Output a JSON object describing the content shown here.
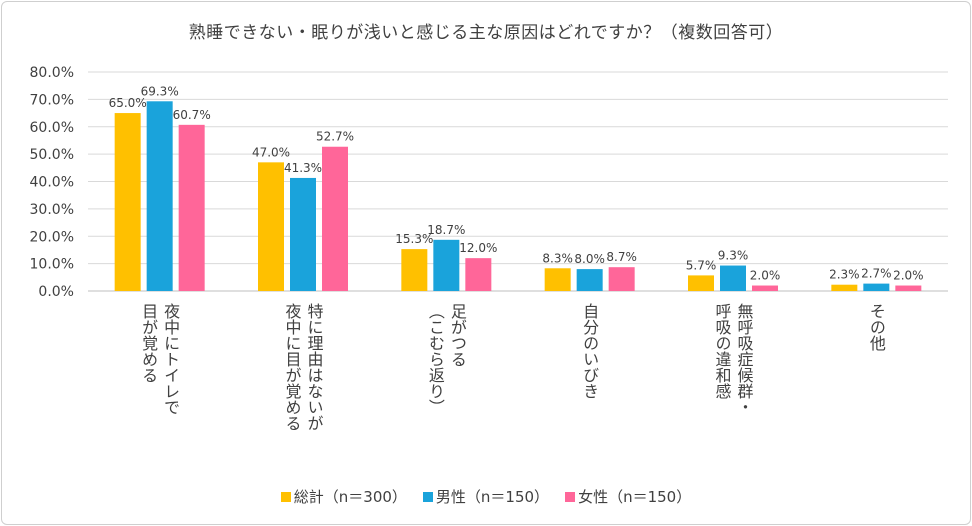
{
  "chart_data": {
    "type": "bar",
    "title": "熟睡できない・眠りが浅いと感じる主な原因はどれですか？（複数回答可）",
    "categories": [
      [
        "夜中にトイレで",
        "目が覚める"
      ],
      [
        "特に理由はないが",
        "夜中に目が覚める"
      ],
      [
        "足がつる",
        "（こむら返り）"
      ],
      [
        "自分のいびき"
      ],
      [
        "無呼吸症候群・",
        "呼吸の違和感"
      ],
      [
        "その他"
      ]
    ],
    "series": [
      {
        "name": "総計（n＝300）",
        "values": [
          65.0,
          47.0,
          15.3,
          8.3,
          5.7,
          2.3
        ],
        "labels": [
          "65.0%",
          "47.0%",
          "15.3%",
          "8.3%",
          "5.7%",
          "2.3%"
        ],
        "color": "#ffc000"
      },
      {
        "name": "男性（n＝150）",
        "values": [
          69.3,
          41.3,
          18.7,
          8.0,
          9.3,
          2.7
        ],
        "labels": [
          "69.3%",
          "41.3%",
          "18.7%",
          "8.0%",
          "9.3%",
          "2.7%"
        ],
        "color": "#1aa3db"
      },
      {
        "name": "女性（n＝150）",
        "values": [
          60.7,
          52.7,
          12.0,
          8.7,
          2.0,
          2.0
        ],
        "labels": [
          "60.7%",
          "52.7%",
          "12.0%",
          "8.7%",
          "2.0%",
          "2.0%"
        ],
        "color": "#ff6699"
      }
    ],
    "yticks": [
      "0.0%",
      "10.0%",
      "20.0%",
      "30.0%",
      "40.0%",
      "50.0%",
      "60.0%",
      "70.0%",
      "80.0%"
    ],
    "ylim": [
      0,
      80
    ],
    "grid": true,
    "legend_position": "bottom"
  }
}
